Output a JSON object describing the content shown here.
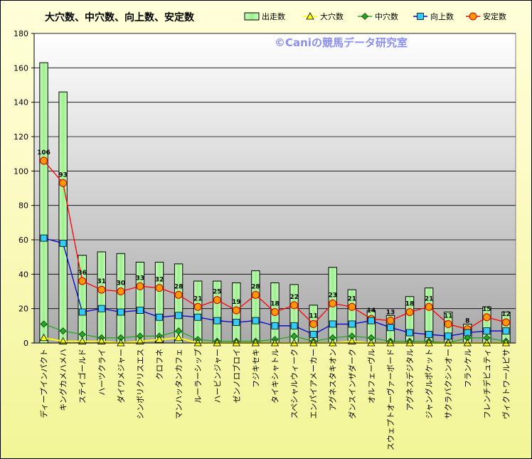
{
  "chart_data": {
    "type": "bar",
    "title": "大穴数、中穴数、向上数、安定数",
    "watermark": "©Caniの競馬データ研究室",
    "ylim": [
      0,
      180
    ],
    "yticks": [
      0,
      20,
      40,
      60,
      80,
      100,
      120,
      140,
      160,
      180
    ],
    "categories": [
      "ディープインパクト",
      "キングカメハメハ",
      "ステイゴールド",
      "ハーツクライ",
      "ダイワメジャー",
      "シンボリクリスエス",
      "クロフネ",
      "マンハッタンカフェ",
      "ルーラーシップ",
      "ハービンジャー",
      "ゼンノロブロイ",
      "フジキセキ",
      "タイキシャトル",
      "スペシャルウィーク",
      "エンパイアメーカー",
      "アグネスタキオン",
      "ダンスインザダーク",
      "オルフェーヴル",
      "スウェプトオーヴァーボード",
      "アグネスデジタル",
      "ジャングルポケット",
      "サクラバクシンオー",
      "フランケル",
      "フレンチデピュティ",
      "ヴィクトワールピサ"
    ],
    "series": [
      {
        "name": "出走数",
        "kind": "bar",
        "color": "#a9f59a",
        "values": [
          163,
          146,
          51,
          53,
          52,
          47,
          47,
          46,
          36,
          36,
          35,
          42,
          35,
          34,
          22,
          44,
          31,
          19,
          16,
          27,
          32,
          18,
          11,
          21,
          18
        ]
      },
      {
        "name": "大穴数",
        "kind": "line",
        "color": "#ffff00",
        "marker": "triangle",
        "values": [
          3,
          1,
          1,
          1,
          0,
          1,
          2,
          3,
          0,
          0,
          0,
          0,
          0,
          0,
          0,
          0,
          1,
          0,
          0,
          0,
          0,
          0,
          0,
          0,
          0
        ]
      },
      {
        "name": "中穴数",
        "kind": "line",
        "color": "#22aa22",
        "marker": "diamond",
        "values": [
          11,
          7,
          5,
          3,
          3,
          4,
          4,
          7,
          2,
          1,
          1,
          1,
          2,
          4,
          1,
          3,
          4,
          3,
          1,
          1,
          1,
          0,
          3,
          3,
          1
        ]
      },
      {
        "name": "向上数",
        "kind": "line",
        "color": "#0000cc",
        "marker": "square",
        "values": [
          61,
          58,
          18,
          20,
          18,
          19,
          15,
          16,
          15,
          13,
          12,
          13,
          10,
          10,
          5,
          11,
          11,
          13,
          9,
          6,
          5,
          4,
          6,
          7,
          7
        ]
      },
      {
        "name": "安定数",
        "kind": "line",
        "color": "#ff0000",
        "marker": "circle",
        "values": [
          106,
          93,
          36,
          31,
          30,
          33,
          32,
          28,
          21,
          25,
          19,
          28,
          18,
          22,
          11,
          23,
          21,
          14,
          13,
          18,
          21,
          11,
          8,
          15,
          12
        ]
      }
    ]
  }
}
